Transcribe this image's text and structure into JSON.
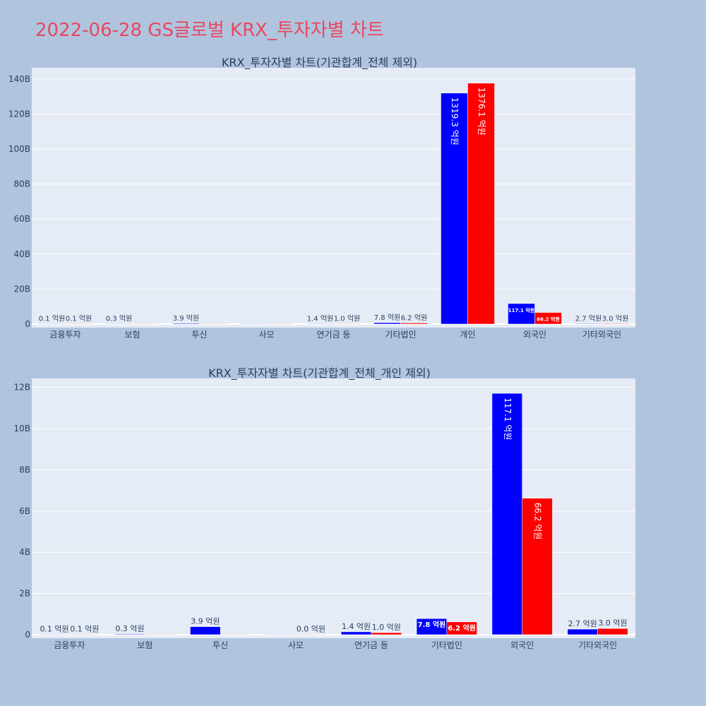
{
  "page_title": "2022-06-28 GS글로벌 KRX_투자자별 차트",
  "colors": {
    "buy": "#0000ff",
    "sell": "#ff0000",
    "plot_bg": "#e5ecf6",
    "page_bg": "#b0c4de",
    "title": "#e8485f"
  },
  "chart_data": [
    {
      "type": "bar",
      "title": "KRX_투자자별 차트(기관합계_전체 제외)",
      "categories": [
        "금융투자",
        "보험",
        "투신",
        "사모",
        "연기금 등",
        "기타법인",
        "개인",
        "외국인",
        "기타외국인"
      ],
      "series": [
        {
          "color": "#0000ff",
          "values": [
            0.01,
            0.03,
            0.39,
            0,
            0.14,
            0.78,
            131.93,
            11.71,
            0.27
          ],
          "labels": [
            "0.1 억원",
            "0.3 억원",
            "3.9 억원",
            "",
            "1.4 억원",
            "7.8 억원",
            "1319.3 억원",
            "117.1 억원",
            "2.7 억원"
          ]
        },
        {
          "color": "#ff0000",
          "values": [
            0.01,
            0,
            0,
            0,
            0.1,
            0.62,
            137.61,
            6.62,
            0.3
          ],
          "labels": [
            "0.1 억원",
            "",
            "",
            "",
            "1.0 억원",
            "6.2 억원",
            "1376.1 억원",
            "66.2 억원",
            "3.0 억원"
          ]
        }
      ],
      "ylim": [
        0,
        146
      ],
      "yticks": [
        0,
        20,
        40,
        60,
        80,
        100,
        120,
        140
      ],
      "ytick_labels": [
        "0",
        "20B",
        "40B",
        "60B",
        "80B",
        "100B",
        "120B",
        "140B"
      ],
      "grid": true
    },
    {
      "type": "bar",
      "title": "KRX_투자자별 차트(기관합계_전체_개인 제외)",
      "categories": [
        "금융투자",
        "보험",
        "투신",
        "사모",
        "연기금 등",
        "기타법인",
        "외국인",
        "기타외국인"
      ],
      "series": [
        {
          "color": "#0000ff",
          "values": [
            0.01,
            0.03,
            0.39,
            0,
            0.14,
            0.78,
            11.71,
            0.27
          ],
          "labels": [
            "0.1 억원",
            "0.3 억원",
            "3.9 억원",
            "",
            "1.4 억원",
            "7.8 억원",
            "117.1 억원",
            "2.7 억원"
          ]
        },
        {
          "color": "#ff0000",
          "values": [
            0.01,
            0,
            0,
            0,
            0.1,
            0.62,
            6.62,
            0.3
          ],
          "labels": [
            "0.1 억원",
            "",
            "",
            "0.0 억원",
            "1.0 억원",
            "6.2 억원",
            "66.2 억원",
            "3.0 억원"
          ]
        }
      ],
      "ylim": [
        0,
        12.4
      ],
      "yticks": [
        0,
        2,
        4,
        6,
        8,
        10,
        12
      ],
      "ytick_labels": [
        "0",
        "2B",
        "4B",
        "6B",
        "8B",
        "10B",
        "12B"
      ],
      "grid": true
    }
  ]
}
